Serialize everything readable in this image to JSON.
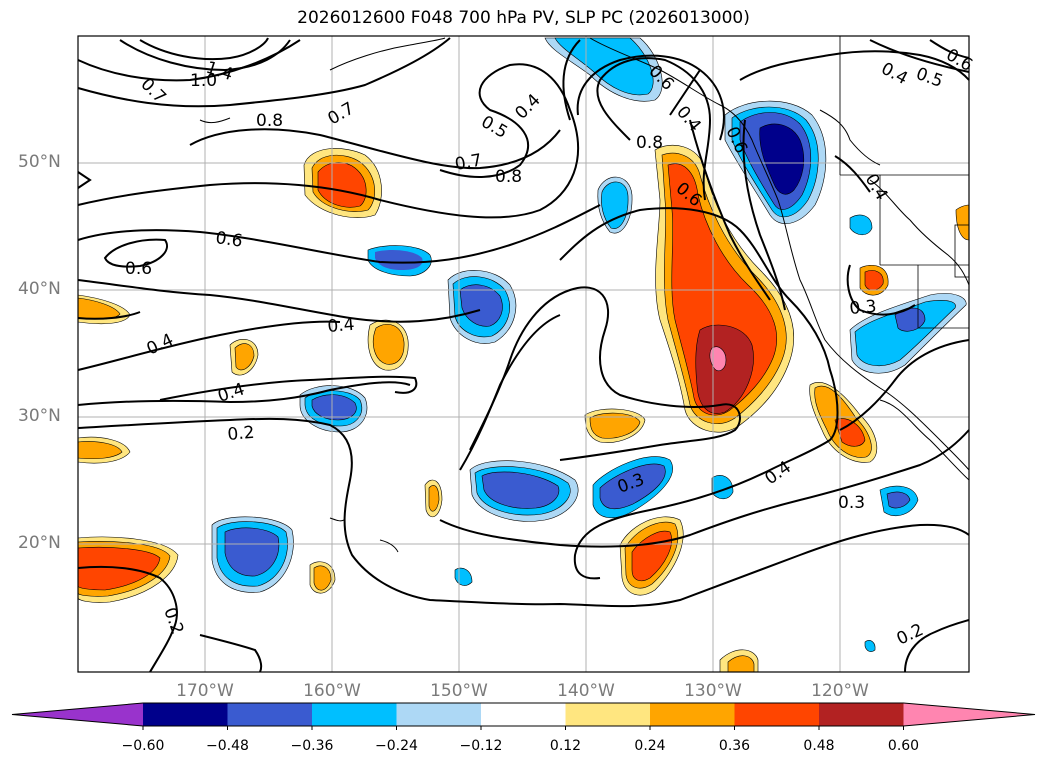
{
  "title": "2026012600 F048 700 hPa PV, SLP PC (2026013000)",
  "lat_labels": [
    "50°N",
    "40°N",
    "30°N",
    "20°N"
  ],
  "lon_labels": [
    "170°W",
    "160°W",
    "150°W",
    "140°W",
    "130°W",
    "120°W"
  ],
  "contour_labels": [
    "1.4",
    "1.0",
    "0.7",
    "0.8",
    "0.7",
    "0.5",
    "0.4",
    "0.7",
    "0.8",
    "0.8",
    "0.6",
    "0.6",
    "0.6",
    "0.4",
    "0.4",
    "0.4",
    "0.2",
    "0.4",
    "0.3",
    "0.3",
    "0.3",
    "0.4",
    "0.2",
    "0.4",
    "0.5",
    "0.6",
    "0.2",
    "0.6",
    "0.6",
    "0.4"
  ],
  "colorbar": {
    "ticks": [
      "−0.60",
      "−0.48",
      "−0.36",
      "−0.24",
      "−0.12",
      "0.12",
      "0.24",
      "0.36",
      "0.48",
      "0.60"
    ],
    "colors": [
      "#9933cc",
      "#00008b",
      "#3a5bd0",
      "#00bfff",
      "#add8f5",
      "#ffffff",
      "#ffe680",
      "#ffa500",
      "#ff4500",
      "#b22222",
      "#ff85b0"
    ]
  }
}
